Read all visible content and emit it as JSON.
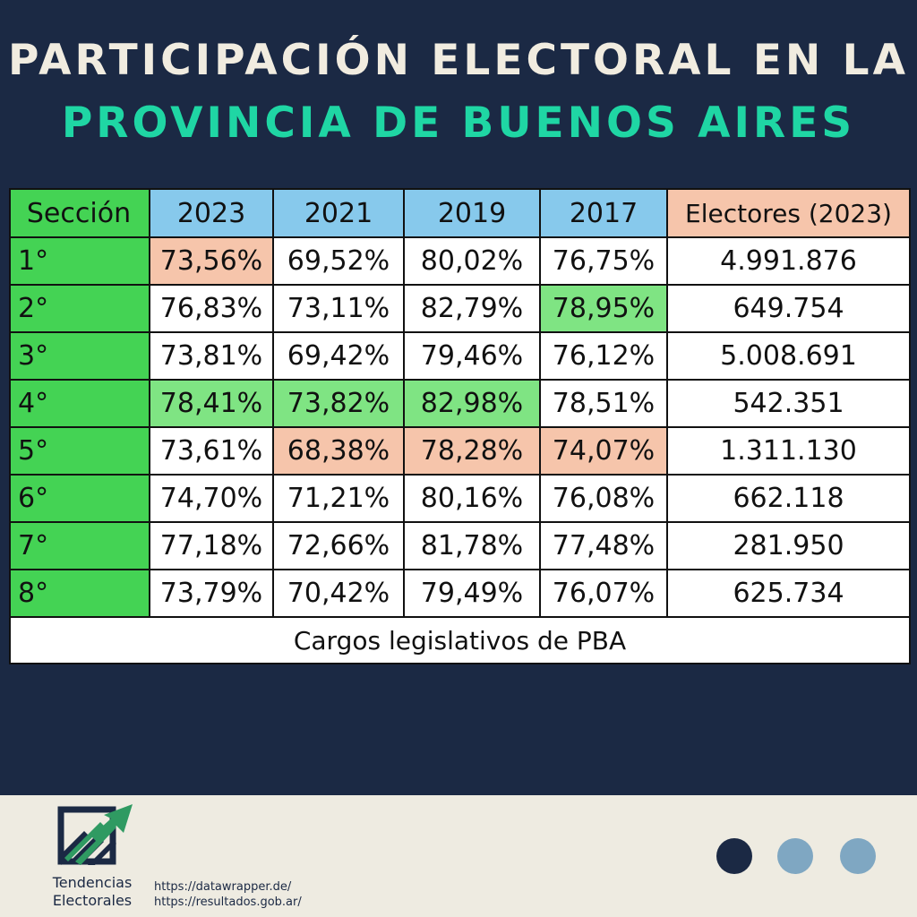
{
  "title": {
    "line1": "PARTICIPACIÓN ELECTORAL EN LA",
    "line2": "PROVINCIA DE BUENOS AIRES"
  },
  "colors": {
    "background": "#1b2944",
    "accent": "#1fd6a4",
    "section_green": "#44d354",
    "year_blue": "#87c9ec",
    "highlight_high": "#7fe483",
    "highlight_low": "#f6c5ab"
  },
  "table": {
    "headers": [
      "Sección",
      "2023",
      "2021",
      "2019",
      "2017",
      "Electores (2023)"
    ],
    "rows": [
      {
        "seccion": "1°",
        "v2023": "73,56%",
        "v2021": "69,52%",
        "v2019": "80,02%",
        "v2017": "76,75%",
        "electores": "4.991.876"
      },
      {
        "seccion": "2°",
        "v2023": "76,83%",
        "v2021": "73,11%",
        "v2019": "82,79%",
        "v2017": "78,95%",
        "electores": "649.754"
      },
      {
        "seccion": "3°",
        "v2023": "73,81%",
        "v2021": "69,42%",
        "v2019": "79,46%",
        "v2017": "76,12%",
        "electores": "5.008.691"
      },
      {
        "seccion": "4°",
        "v2023": "78,41%",
        "v2021": "73,82%",
        "v2019": "82,98%",
        "v2017": "78,51%",
        "electores": "542.351"
      },
      {
        "seccion": "5°",
        "v2023": "73,61%",
        "v2021": "68,38%",
        "v2019": "78,28%",
        "v2017": "74,07%",
        "electores": "1.311.130"
      },
      {
        "seccion": "6°",
        "v2023": "74,70%",
        "v2021": "71,21%",
        "v2019": "80,16%",
        "v2017": "76,08%",
        "electores": "662.118"
      },
      {
        "seccion": "7°",
        "v2023": "77,18%",
        "v2021": "72,66%",
        "v2019": "81,78%",
        "v2017": "77,48%",
        "electores": "281.950"
      },
      {
        "seccion": "8°",
        "v2023": "73,79%",
        "v2021": "70,42%",
        "v2019": "79,49%",
        "v2017": "76,07%",
        "electores": "625.734"
      }
    ],
    "footer": "Cargos legislativos de PBA"
  },
  "brand": {
    "line1": "Tendencias",
    "line2": "Electorales",
    "logo_icon": "chart-arrow-up-icon"
  },
  "sources": [
    "https://datawrapper.de/",
    "https://resultados.gob.ar/"
  ]
}
